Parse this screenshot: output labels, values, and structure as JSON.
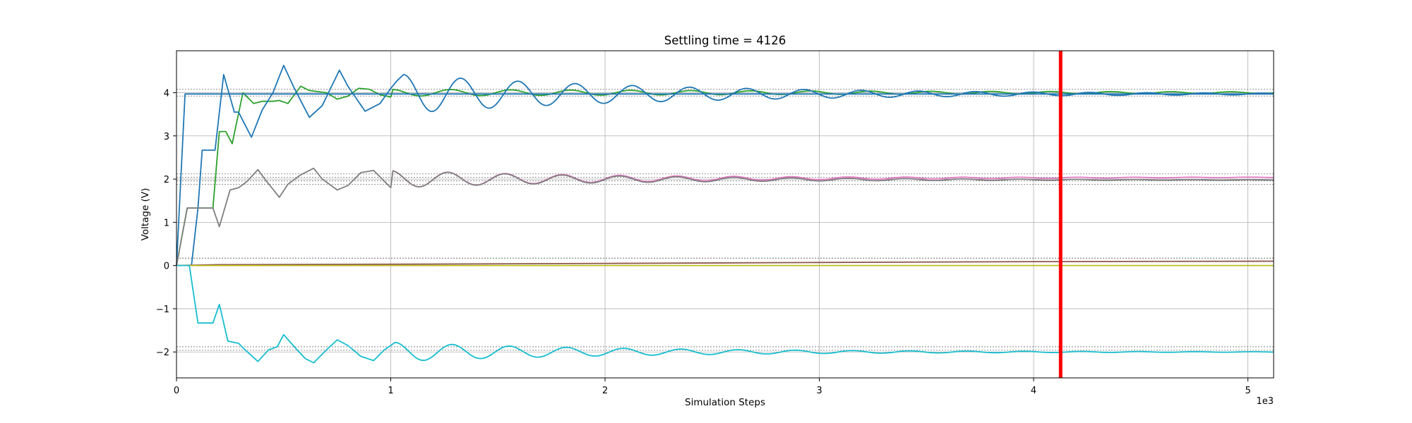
{
  "chart_data": {
    "type": "line",
    "title": "Settling time = 4126",
    "xlabel": "Simulation Steps",
    "ylabel": "Voltage (V)",
    "x_offset_label": "1e3",
    "xlim": [
      0,
      5.12
    ],
    "ylim": [
      -2.6,
      4.97
    ],
    "xticks": [
      0,
      1,
      2,
      3,
      4,
      5
    ],
    "xtick_labels": [
      "0",
      "1",
      "2",
      "3",
      "4",
      "5"
    ],
    "yticks": [
      -2,
      -1,
      0,
      1,
      2,
      3,
      4
    ],
    "ytick_labels": [
      "−2",
      "−1",
      "0",
      "1",
      "2",
      "3",
      "4"
    ],
    "grid": true,
    "settling_line": {
      "x": 4.126,
      "color": "#ff0000"
    },
    "tolerance_bands": [
      {
        "y": 4.08,
        "color": "#888888"
      },
      {
        "y": 3.92,
        "color": "#888888"
      },
      {
        "y": 2.12,
        "color": "#888888"
      },
      {
        "y": 2.04,
        "color": "#888888"
      },
      {
        "y": 1.96,
        "color": "#888888"
      },
      {
        "y": 1.88,
        "color": "#888888"
      },
      {
        "y": 0.17,
        "color": "#555555"
      },
      {
        "y": -1.88,
        "color": "#888888"
      },
      {
        "y": -1.96,
        "color": "#888888"
      }
    ],
    "series": [
      {
        "color": "#2ca02c",
        "kind": "green",
        "points": [
          [
            0,
            0
          ],
          [
            0.05,
            1.33
          ],
          [
            0.17,
            1.33
          ],
          [
            0.2,
            3.1
          ],
          [
            0.23,
            3.1
          ],
          [
            0.26,
            2.82
          ],
          [
            0.31,
            4.0
          ],
          [
            0.36,
            3.75
          ],
          [
            0.4,
            3.8
          ],
          [
            0.45,
            3.8
          ],
          [
            0.48,
            3.82
          ],
          [
            0.52,
            3.75
          ],
          [
            0.58,
            4.15
          ],
          [
            0.62,
            4.05
          ],
          [
            0.7,
            4.0
          ],
          [
            0.75,
            3.85
          ],
          [
            0.8,
            3.92
          ],
          [
            0.85,
            4.1
          ],
          [
            0.9,
            4.08
          ],
          [
            0.95,
            3.95
          ],
          [
            1.0,
            3.9
          ]
        ],
        "osc": {
          "center": 4.0,
          "amp0": 0.08,
          "decay": 0.35,
          "period": 0.28,
          "start": 1.0,
          "end": 5.12
        }
      },
      {
        "color": "#1f77b4",
        "kind": "blue-fast",
        "points": [
          [
            0,
            0
          ],
          [
            0.04,
            3.97
          ],
          [
            5.12,
            3.97
          ]
        ]
      },
      {
        "color": "#1f77b4",
        "kind": "blue-osc",
        "points": [
          [
            0,
            0
          ],
          [
            0.07,
            0
          ],
          [
            0.1,
            1.33
          ],
          [
            0.12,
            2.67
          ],
          [
            0.18,
            2.67
          ],
          [
            0.22,
            4.42
          ],
          [
            0.27,
            3.55
          ],
          [
            0.29,
            3.55
          ],
          [
            0.31,
            3.35
          ],
          [
            0.35,
            2.97
          ],
          [
            0.4,
            3.6
          ],
          [
            0.45,
            4.0
          ],
          [
            0.5,
            4.63
          ],
          [
            0.55,
            4.1
          ],
          [
            0.62,
            3.43
          ],
          [
            0.68,
            3.7
          ],
          [
            0.76,
            4.52
          ],
          [
            0.8,
            4.15
          ],
          [
            0.88,
            3.57
          ],
          [
            0.95,
            3.75
          ],
          [
            1.0,
            4.1
          ],
          [
            1.03,
            4.28
          ],
          [
            1.06,
            4.42
          ]
        ],
        "osc": {
          "center": 3.97,
          "amp0": 0.45,
          "decay": 0.78,
          "period": 0.267,
          "start": 1.06,
          "end": 5.12
        }
      },
      {
        "color": "#e377c2",
        "kind": "pink",
        "points": [],
        "osc": {
          "center": 2.0,
          "amp0": 0.2,
          "decay": 0.9,
          "period": 0.267,
          "start": 1.0,
          "end": 5.12,
          "drift": 0.01
        }
      },
      {
        "color": "#7f7f7f",
        "kind": "gray",
        "points": [
          [
            0,
            0
          ],
          [
            0.05,
            1.33
          ],
          [
            0.17,
            1.33
          ],
          [
            0.2,
            0.9
          ],
          [
            0.25,
            1.75
          ],
          [
            0.29,
            1.8
          ],
          [
            0.33,
            1.95
          ],
          [
            0.38,
            2.22
          ],
          [
            0.42,
            1.95
          ],
          [
            0.48,
            1.58
          ],
          [
            0.52,
            1.88
          ],
          [
            0.58,
            2.1
          ],
          [
            0.64,
            2.25
          ],
          [
            0.68,
            2.0
          ],
          [
            0.75,
            1.75
          ],
          [
            0.8,
            1.85
          ],
          [
            0.86,
            2.15
          ],
          [
            0.92,
            2.2
          ],
          [
            0.97,
            1.95
          ],
          [
            1.0,
            1.8
          ]
        ],
        "osc": {
          "center": 2.0,
          "amp0": 0.2,
          "decay": 0.9,
          "period": 0.267,
          "start": 1.0,
          "end": 5.12,
          "drift": -0.005
        }
      },
      {
        "color": "#8c564b",
        "kind": "brown",
        "points": [
          [
            0,
            0
          ],
          [
            0.2,
            0.02
          ],
          [
            1,
            0.03
          ],
          [
            2,
            0.05
          ],
          [
            3,
            0.07
          ],
          [
            4,
            0.09
          ],
          [
            5.12,
            0.1
          ]
        ]
      },
      {
        "color": "#bcbd22",
        "kind": "olive",
        "points": [
          [
            0,
            0
          ],
          [
            5.12,
            0
          ]
        ]
      },
      {
        "color": "#17becf",
        "kind": "cyan",
        "points": [
          [
            0,
            0
          ],
          [
            0.06,
            0
          ],
          [
            0.1,
            -1.33
          ],
          [
            0.17,
            -1.33
          ],
          [
            0.2,
            -0.9
          ],
          [
            0.24,
            -1.75
          ],
          [
            0.29,
            -1.8
          ],
          [
            0.32,
            -1.95
          ],
          [
            0.38,
            -2.22
          ],
          [
            0.43,
            -1.95
          ],
          [
            0.47,
            -1.88
          ],
          [
            0.5,
            -1.6
          ],
          [
            0.55,
            -1.88
          ],
          [
            0.6,
            -2.15
          ],
          [
            0.64,
            -2.25
          ],
          [
            0.7,
            -1.95
          ],
          [
            0.75,
            -1.72
          ],
          [
            0.8,
            -1.85
          ],
          [
            0.86,
            -2.1
          ],
          [
            0.92,
            -2.2
          ],
          [
            0.97,
            -1.95
          ],
          [
            1.02,
            -1.78
          ]
        ],
        "osc": {
          "center": -2.0,
          "amp0": 0.22,
          "decay": 0.9,
          "period": 0.267,
          "start": 1.02,
          "end": 5.12
        }
      }
    ]
  }
}
